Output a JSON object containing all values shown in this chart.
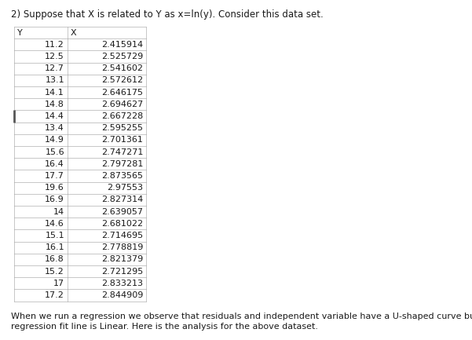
{
  "title": "2) Suppose that X is related to Y as x=ln(y). Consider this data set.",
  "footer_line1": "When we run a regression we observe that residuals and independent variable have a U-shaped curve but",
  "footer_line2": "regression fit line is Linear. Here is the analysis for the above dataset.",
  "col_headers": [
    "Y",
    "X"
  ],
  "table_data": [
    [
      "11.2",
      "2.415914"
    ],
    [
      "12.5",
      "2.525729"
    ],
    [
      "12.7",
      "2.541602"
    ],
    [
      "13.1",
      "2.572612"
    ],
    [
      "14.1",
      "2.646175"
    ],
    [
      "14.8",
      "2.694627"
    ],
    [
      "14.4",
      "2.667228"
    ],
    [
      "13.4",
      "2.595255"
    ],
    [
      "14.9",
      "2.701361"
    ],
    [
      "15.6",
      "2.747271"
    ],
    [
      "16.4",
      "2.797281"
    ],
    [
      "17.7",
      "2.873565"
    ],
    [
      "19.6",
      "2.97553"
    ],
    [
      "16.9",
      "2.827314"
    ],
    [
      "14",
      "2.639057"
    ],
    [
      "14.6",
      "2.681022"
    ],
    [
      "15.1",
      "2.714695"
    ],
    [
      "16.1",
      "2.778819"
    ],
    [
      "16.8",
      "2.821379"
    ],
    [
      "15.2",
      "2.721295"
    ],
    [
      "17",
      "2.833213"
    ],
    [
      "17.2",
      "2.844909"
    ]
  ],
  "marked_row": 6,
  "bg_color": "#ffffff",
  "title_fontsize": 8.5,
  "table_fontsize": 8.0,
  "footer_fontsize": 8.0,
  "border_color": "#b0b0b0",
  "text_color": "#1a1a1a",
  "mark_color": "#555555"
}
